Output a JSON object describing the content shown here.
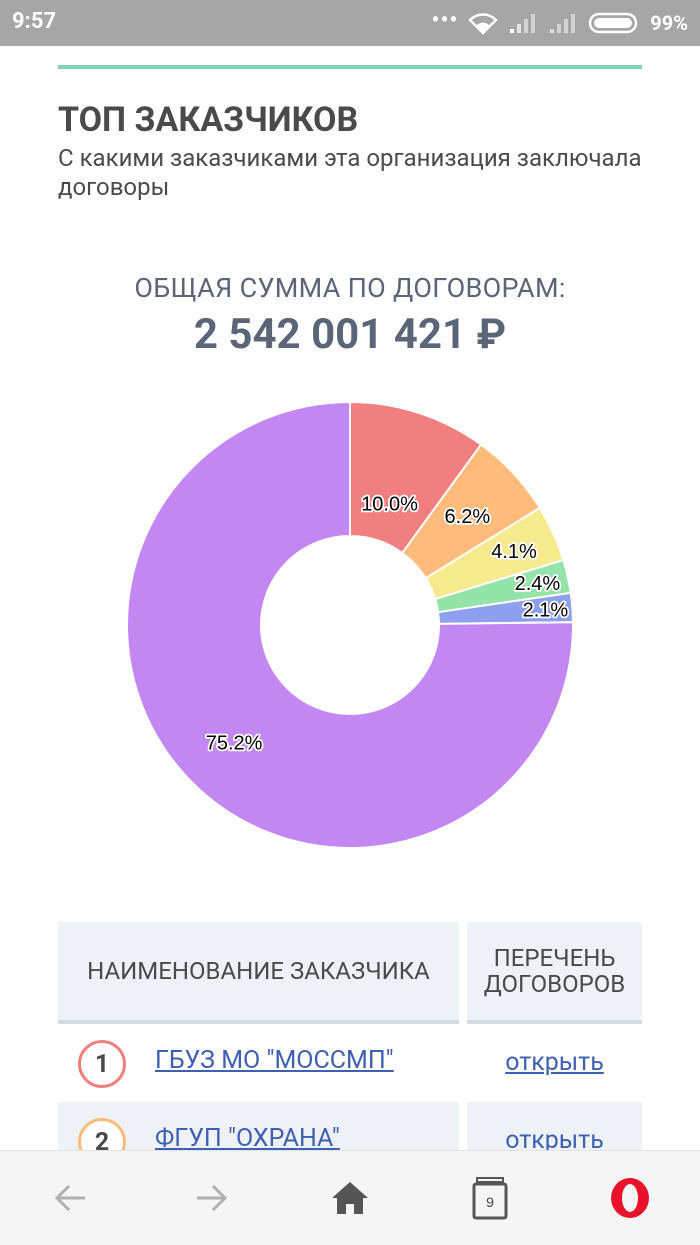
{
  "status_bar": {
    "time": "9:57",
    "dots": "•••",
    "battery_percent": "99%"
  },
  "section": {
    "title": "ТОП ЗАКАЗЧИКОВ",
    "subtitle": "С какими заказчиками эта организация заключала договоры",
    "accent_color": "#7fd4b4"
  },
  "total": {
    "label": "ОБЩАЯ СУММА ПО ДОГОВОРАМ:",
    "value": "2 542 001 421 ₽"
  },
  "chart_data": {
    "type": "pie",
    "donut": true,
    "start": "12 o'clock, clockwise",
    "slices": [
      {
        "label": "10.0%",
        "value": 10.0,
        "color": "#f27f7f"
      },
      {
        "label": "6.2%",
        "value": 6.2,
        "color": "#ffbb7a"
      },
      {
        "label": "4.1%",
        "value": 4.1,
        "color": "#f7e98e"
      },
      {
        "label": "2.4%",
        "value": 2.4,
        "color": "#94e3a8"
      },
      {
        "label": "2.1%",
        "value": 2.1,
        "color": "#8e9ff0"
      },
      {
        "label": "75.2%",
        "value": 75.2,
        "color": "#c287f2"
      }
    ]
  },
  "table": {
    "headers": {
      "name": "НАИМЕНОВАНИЕ ЗАКАЗЧИКА",
      "list_line1": "ПЕРЕЧЕНЬ",
      "list_line2": "ДОГОВОРОВ"
    },
    "rows": [
      {
        "rank": "1",
        "name": "ГБУЗ МО \"МОССМП\"",
        "link": "открыть",
        "rank_color": "#f08080"
      },
      {
        "rank": "2",
        "name": "ФГУП \"ОХРАНА\"",
        "link": "открыть",
        "rank_color": "#ffbb7a"
      }
    ]
  },
  "navbar": {
    "tab_count": "9",
    "icons": [
      "back-arrow-icon",
      "forward-arrow-icon",
      "home-icon",
      "tabs-icon",
      "opera-icon"
    ]
  }
}
